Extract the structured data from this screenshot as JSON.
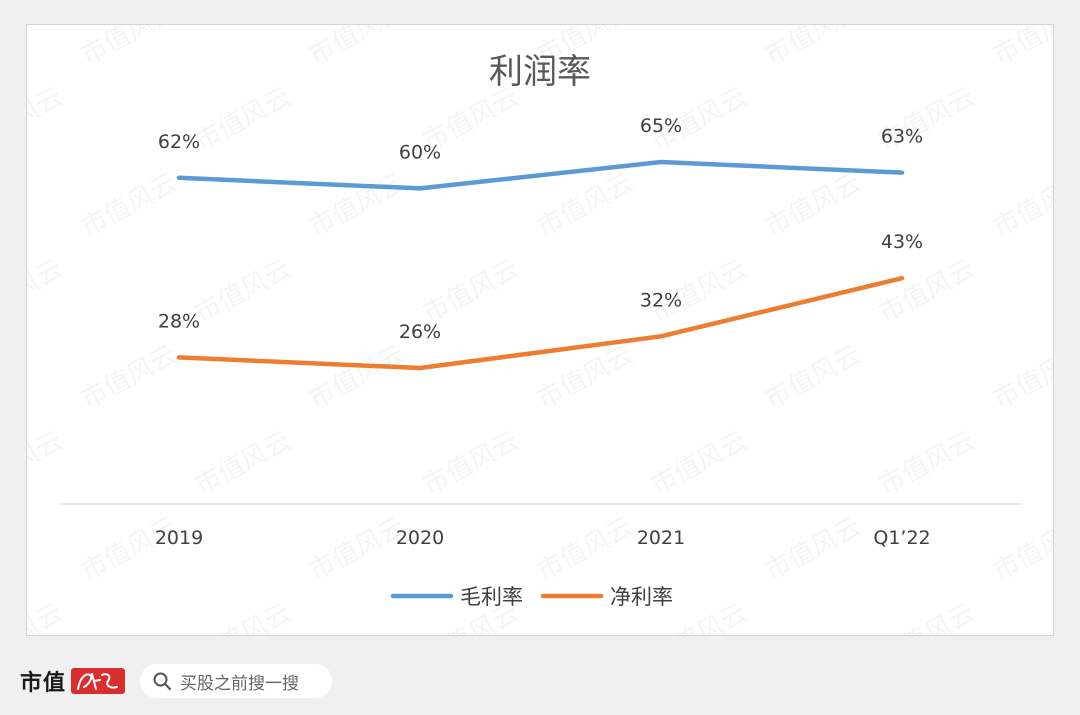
{
  "chart_data": {
    "type": "line",
    "title": "利润率",
    "categories": [
      "2019",
      "2020",
      "2021",
      "Q1’22"
    ],
    "series": [
      {
        "name": "毛利率",
        "values": [
          62,
          60,
          65,
          63
        ],
        "labels": [
          "62%",
          "60%",
          "65%",
          "63%"
        ],
        "color": "#5b9bd5"
      },
      {
        "name": "净利率",
        "values": [
          28,
          26,
          32,
          43
        ],
        "labels": [
          "28%",
          "26%",
          "32%",
          "43%"
        ],
        "color": "#ed7d31"
      }
    ],
    "ylim": [
      -0.5,
      70
    ],
    "unit": "%",
    "grid": false,
    "legend": "bottom"
  },
  "watermark": {
    "text": "市值风云"
  },
  "footer": {
    "brand_name": "市值",
    "brand_seal_text": "风云",
    "search_placeholder": "买股之前搜一搜",
    "search_icon": "search-icon"
  }
}
